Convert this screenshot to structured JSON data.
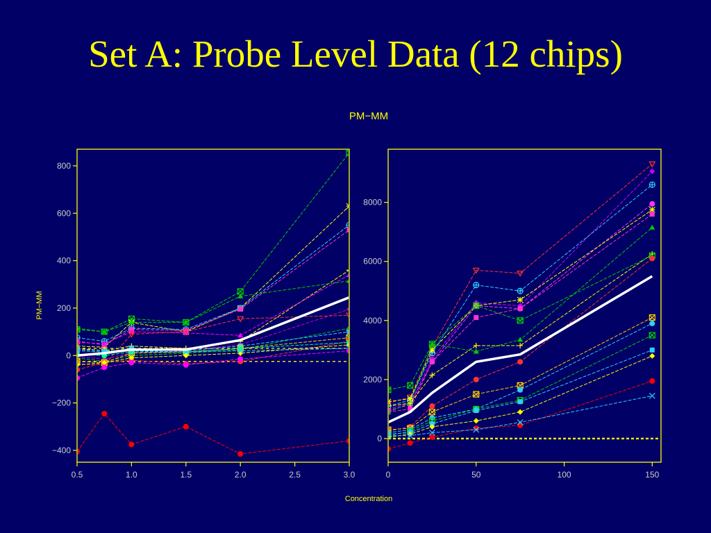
{
  "slide": {
    "title": "Set A: Probe Level Data (12 chips)"
  },
  "colors": {
    "background": "#000066",
    "frame": "#ffff00",
    "tick_label": "#cccccc",
    "axis_text": "#ffff00",
    "mean_line": "#ffffff",
    "ref_line": "#ffff00"
  },
  "chart_data": [
    {
      "type": "line",
      "title": "PM−MM",
      "xlabel": "Concentration",
      "ylabel": "PM−MM",
      "xlim": [
        0.5,
        3.0
      ],
      "ylim": [
        -450,
        870
      ],
      "x_ticks": [
        0.5,
        1.0,
        1.5,
        2.0,
        2.5,
        3.0
      ],
      "x_tick_labels": [
        "0.5",
        "1.0",
        "1.5",
        "2.0",
        "2.5",
        "3.0"
      ],
      "y_ticks": [
        -400,
        -200,
        0,
        200,
        400,
        600,
        800
      ],
      "y_tick_labels": [
        "−400",
        "−200",
        "0",
        "200",
        "400",
        "600",
        "800"
      ],
      "reference_lines": [
        {
          "y": 30,
          "style": "dashed"
        },
        {
          "y": -25,
          "style": "dashed"
        }
      ],
      "x": [
        0.5,
        0.75,
        1.0,
        1.5,
        2.0,
        3.0
      ],
      "mean": [
        0,
        10,
        25,
        25,
        65,
        245
      ],
      "series": [
        {
          "color": "#00cc00",
          "marker": "boxx",
          "values": [
            110,
            100,
            155,
            140,
            270,
            855
          ]
        },
        {
          "color": "#ffff00",
          "marker": "star",
          "values": [
            40,
            35,
            140,
            100,
            200,
            630
          ]
        },
        {
          "color": "#33ccff",
          "marker": "circplus",
          "values": [
            75,
            60,
            115,
            110,
            200,
            550
          ]
        },
        {
          "color": "#ff33cc",
          "marker": "square",
          "values": [
            60,
            45,
            110,
            105,
            195,
            530
          ]
        },
        {
          "color": "#ffff00",
          "marker": "plus",
          "values": [
            30,
            20,
            40,
            30,
            60,
            360
          ]
        },
        {
          "color": "#ff00ff",
          "marker": "triangle",
          "values": [
            55,
            50,
            100,
            95,
            85,
            340
          ]
        },
        {
          "color": "#00cc00",
          "marker": "triangle",
          "values": [
            115,
            100,
            140,
            140,
            250,
            315
          ]
        },
        {
          "color": "#cc00cc",
          "marker": "diamond",
          "values": [
            -5,
            -15,
            10,
            20,
            45,
            195
          ]
        },
        {
          "color": "#ff3333",
          "marker": "tridown",
          "values": [
            -35,
            -40,
            90,
            100,
            155,
            170
          ]
        },
        {
          "color": "#00cc00",
          "marker": "tri_open",
          "values": [
            -10,
            -25,
            0,
            10,
            25,
            115
          ]
        },
        {
          "color": "#33ccff",
          "marker": "square",
          "values": [
            20,
            15,
            30,
            20,
            40,
            100
          ]
        },
        {
          "color": "#ffcc00",
          "marker": "boxx",
          "values": [
            -25,
            -30,
            10,
            15,
            30,
            75
          ]
        },
        {
          "color": "#ff3333",
          "marker": "circle",
          "values": [
            -60,
            -30,
            -20,
            -35,
            -25,
            60
          ]
        },
        {
          "color": "#00ff99",
          "marker": "circle",
          "values": [
            5,
            0,
            15,
            15,
            30,
            55
          ]
        },
        {
          "color": "#ffff00",
          "marker": "diamond",
          "values": [
            -40,
            -30,
            -10,
            0,
            10,
            45
          ]
        },
        {
          "color": "#33ccff",
          "marker": "cross",
          "values": [
            25,
            20,
            20,
            15,
            20,
            30
          ]
        },
        {
          "color": "#ff00ff",
          "marker": "circle",
          "values": [
            -95,
            -50,
            -30,
            -40,
            -15,
            20
          ]
        },
        {
          "color": "#ff0000",
          "marker": "circle",
          "values": [
            -405,
            -245,
            -375,
            -300,
            -415,
            -360
          ]
        }
      ]
    },
    {
      "type": "line",
      "xlabel": "Concentration",
      "ylabel": "PM−MM",
      "xlim": [
        0,
        155
      ],
      "ylim": [
        -800,
        9800
      ],
      "x_ticks": [
        0,
        50,
        100,
        150
      ],
      "x_tick_labels": [
        "0",
        "50",
        "100",
        "150"
      ],
      "y_ticks": [
        0,
        2000,
        4000,
        6000,
        8000
      ],
      "y_tick_labels": [
        "0",
        "2000",
        "4000",
        "6000",
        "8000"
      ],
      "reference_lines": [
        {
          "y": 0,
          "style": "dashed"
        }
      ],
      "x": [
        0,
        12.5,
        25,
        50,
        75,
        150
      ],
      "mean": [
        550,
        900,
        1550,
        2600,
        2850,
        5500
      ],
      "series": [
        {
          "color": "#ff3333",
          "marker": "tridown",
          "values": [
            1200,
            1400,
            3100,
            5700,
            5600,
            9300
          ]
        },
        {
          "color": "#cc00ff",
          "marker": "diamond",
          "values": [
            1000,
            1200,
            2700,
            4600,
            4500,
            9050
          ]
        },
        {
          "color": "#33ccff",
          "marker": "circplus",
          "values": [
            1100,
            1300,
            2900,
            5200,
            5000,
            8600
          ]
        },
        {
          "color": "#ff33ff",
          "marker": "circle",
          "values": [
            950,
            1150,
            2600,
            4500,
            4400,
            7950
          ]
        },
        {
          "color": "#ffff00",
          "marker": "star",
          "values": [
            1250,
            1350,
            3000,
            4500,
            4700,
            7750
          ]
        },
        {
          "color": "#ff33cc",
          "marker": "square",
          "values": [
            900,
            1000,
            2600,
            4100,
            4400,
            7600
          ]
        },
        {
          "color": "#00cc00",
          "marker": "triangle",
          "values": [
            900,
            1200,
            3200,
            2950,
            3350,
            7150
          ]
        },
        {
          "color": "#ffff00",
          "marker": "plus",
          "values": [
            1100,
            1200,
            2150,
            3150,
            3150,
            6250
          ]
        },
        {
          "color": "#00cc00",
          "marker": "boxx",
          "values": [
            1650,
            1800,
            3200,
            4500,
            4000,
            6200
          ]
        },
        {
          "color": "#ff3333",
          "marker": "circle",
          "values": [
            250,
            400,
            1100,
            2000,
            2600,
            6100
          ]
        },
        {
          "color": "#ffcc00",
          "marker": "boxx",
          "values": [
            300,
            350,
            900,
            1500,
            1800,
            4100
          ]
        },
        {
          "color": "#33ccff",
          "marker": "circle",
          "values": [
            200,
            300,
            700,
            1000,
            1650,
            3900
          ]
        },
        {
          "color": "#00cc00",
          "marker": "boxx",
          "values": [
            100,
            250,
            600,
            1000,
            1300,
            3500
          ]
        },
        {
          "color": "#33ccff",
          "marker": "square",
          "values": [
            150,
            200,
            500,
            950,
            1250,
            3000
          ]
        },
        {
          "color": "#ffff00",
          "marker": "diamond",
          "values": [
            50,
            150,
            400,
            600,
            900,
            2800
          ]
        },
        {
          "color": "#ff0000",
          "marker": "circle",
          "values": [
            -350,
            -150,
            50,
            350,
            450,
            1950
          ]
        },
        {
          "color": "#33ccff",
          "marker": "cross",
          "values": [
            100,
            100,
            200,
            300,
            550,
            1450
          ]
        }
      ]
    }
  ]
}
